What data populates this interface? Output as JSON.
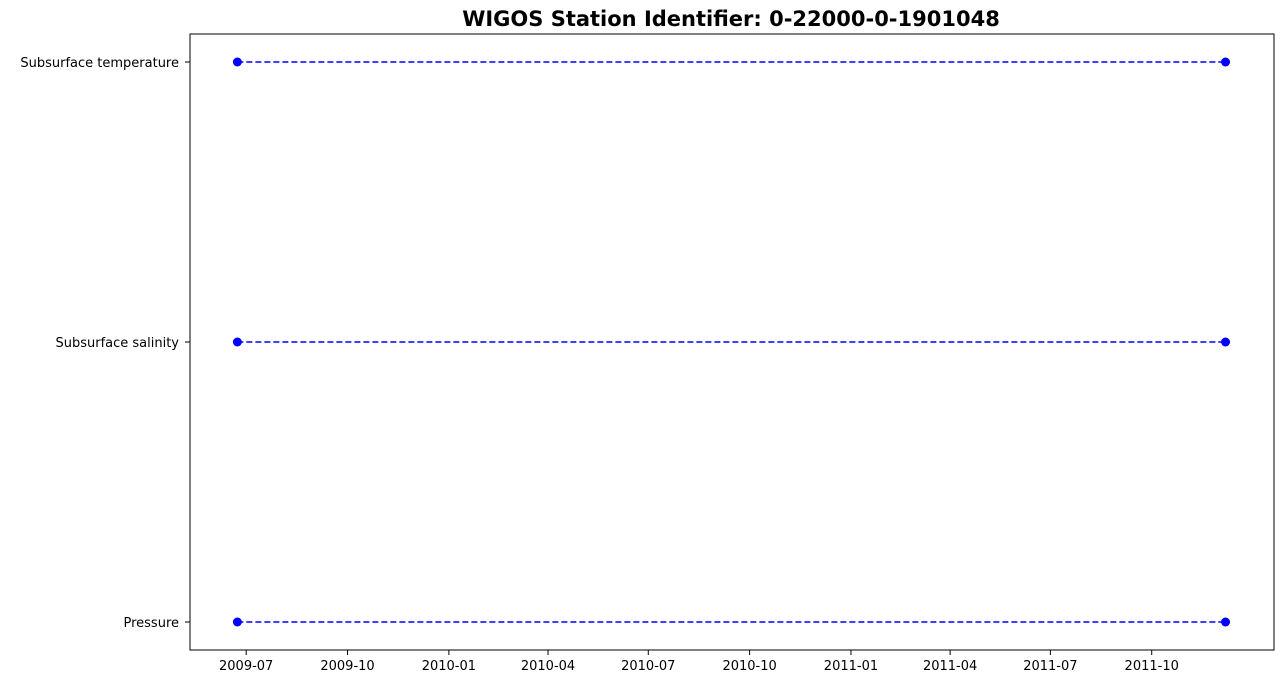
{
  "chart_data": {
    "type": "line",
    "title": "WIGOS Station Identifier: 0-22000-0-1901048",
    "xlabel": "",
    "ylabel": "",
    "x_ticks": [
      "2009-07",
      "2009-10",
      "2010-01",
      "2010-04",
      "2010-07",
      "2010-10",
      "2011-01",
      "2011-04",
      "2011-07",
      "2011-10"
    ],
    "y_categories": [
      "Pressure",
      "Subsurface salinity",
      "Subsurface temperature"
    ],
    "xlim": [
      "2009-05-11",
      "2012-01-20"
    ],
    "grid": false,
    "series": [
      {
        "name": "Pressure",
        "x": [
          "2009-06-23",
          "2011-12-07"
        ]
      },
      {
        "name": "Subsurface salinity",
        "x": [
          "2009-06-23",
          "2011-12-07"
        ]
      },
      {
        "name": "Subsurface temperature",
        "x": [
          "2009-06-23",
          "2011-12-07"
        ]
      }
    ],
    "line_style": "dashed",
    "marker": "circle",
    "color": "#0000ff"
  }
}
